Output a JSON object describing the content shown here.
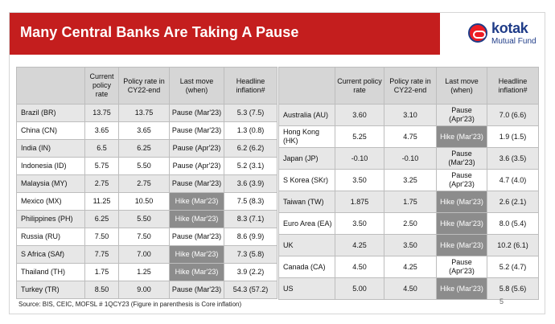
{
  "title": "Many Central Banks Are Taking A Pause",
  "logo": {
    "brand": "kotak",
    "sub": "Mutual Fund",
    "icon": "kotak-logo-icon"
  },
  "headers": [
    "",
    "Current policy rate",
    "Policy rate in CY22-end",
    "Last move (when)",
    "Headline inflation#"
  ],
  "left_rows": [
    {
      "country": "Brazil (BR)",
      "current": "13.75",
      "cy22": "13.75",
      "move": "Pause (Mar'23)",
      "inflation": "5.3 (7.5)",
      "hike": false
    },
    {
      "country": "China (CN)",
      "current": "3.65",
      "cy22": "3.65",
      "move": "Pause (Mar'23)",
      "inflation": "1.3 (0.8)",
      "hike": false
    },
    {
      "country": "India (IN)",
      "current": "6.5",
      "cy22": "6.25",
      "move": "Pause (Apr'23)",
      "inflation": "6.2 (6.2)",
      "hike": false
    },
    {
      "country": "Indonesia (ID)",
      "current": "5.75",
      "cy22": "5.50",
      "move": "Pause (Apr'23)",
      "inflation": "5.2 (3.1)",
      "hike": false
    },
    {
      "country": "Malaysia (MY)",
      "current": "2.75",
      "cy22": "2.75",
      "move": "Pause (Mar'23)",
      "inflation": "3.6 (3.9)",
      "hike": false
    },
    {
      "country": "Mexico (MX)",
      "current": "11.25",
      "cy22": "10.50",
      "move": "Hike (Mar'23)",
      "inflation": "7.5 (8.3)",
      "hike": true
    },
    {
      "country": "Philippines (PH)",
      "current": "6.25",
      "cy22": "5.50",
      "move": "Hike (Mar'23)",
      "inflation": "8.3 (7.1)",
      "hike": true
    },
    {
      "country": "Russia (RU)",
      "current": "7.50",
      "cy22": "7.50",
      "move": "Pause (Mar'23)",
      "inflation": "8.6 (9.9)",
      "hike": false
    },
    {
      "country": "S Africa (SAf)",
      "current": "7.75",
      "cy22": "7.00",
      "move": "Hike (Mar'23)",
      "inflation": "7.3 (5.8)",
      "hike": true
    },
    {
      "country": "Thailand (TH)",
      "current": "1.75",
      "cy22": "1.25",
      "move": "Hike (Mar'23)",
      "inflation": "3.9 (2.2)",
      "hike": true
    },
    {
      "country": "Turkey (TR)",
      "current": "8.50",
      "cy22": "9.00",
      "move": "Pause (Mar'23)",
      "inflation": "54.3 (57.2)",
      "hike": false
    }
  ],
  "right_rows": [
    {
      "country": "Australia (AU)",
      "current": "3.60",
      "cy22": "3.10",
      "move": "Pause (Apr'23)",
      "inflation": "7.0 (6.6)",
      "hike": false
    },
    {
      "country": "Hong Kong (HK)",
      "current": "5.25",
      "cy22": "4.75",
      "move": "Hike (Mar'23)",
      "inflation": "1.9 (1.5)",
      "hike": true
    },
    {
      "country": "Japan (JP)",
      "current": "-0.10",
      "cy22": "-0.10",
      "move": "Pause (Mar'23)",
      "inflation": "3.6 (3.5)",
      "hike": false
    },
    {
      "country": "S Korea (SKr)",
      "current": "3.50",
      "cy22": "3.25",
      "move": "Pause (Apr'23)",
      "inflation": "4.7 (4.0)",
      "hike": false
    },
    {
      "country": "Taiwan (TW)",
      "current": "1.875",
      "cy22": "1.75",
      "move": "Hike (Mar'23)",
      "inflation": "2.6 (2.1)",
      "hike": true
    },
    {
      "country": "Euro Area (EA)",
      "current": "3.50",
      "cy22": "2.50",
      "move": "Hike (Mar'23)",
      "inflation": "8.0 (5.4)",
      "hike": true
    },
    {
      "country": "UK",
      "current": "4.25",
      "cy22": "3.50",
      "move": "Hike (Mar'23)",
      "inflation": "10.2 (6.1)",
      "hike": true
    },
    {
      "country": "Canada (CA)",
      "current": "4.50",
      "cy22": "4.25",
      "move": "Pause (Apr'23)",
      "inflation": "5.2 (4.7)",
      "hike": false
    },
    {
      "country": "US",
      "current": "5.00",
      "cy22": "4.50",
      "move": "Hike (Mar'23)",
      "inflation": "5.8 (5.6)",
      "hike": true
    }
  ],
  "source": "Source: BIS, CEIC, MOFSL # 1QCY23 (Figure in parenthesis is Core inflation)",
  "page_number": "5"
}
